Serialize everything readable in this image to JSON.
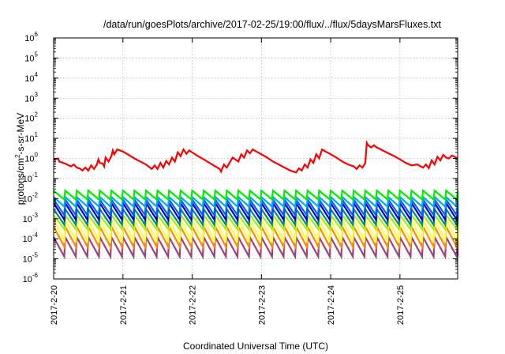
{
  "chart_data": {
    "type": "line",
    "title": "/data/run/goesPlots/archive/2017-02-25/19:00/flux/../flux/5daysMarsFluxes.txt",
    "xlabel": "Coordinated Universal Time (UTC)",
    "ylabel_parts": [
      "protons/cm",
      "2",
      "-s-sr-MeV"
    ],
    "y_scale": "log",
    "ylim": [
      1e-06,
      1000000.0
    ],
    "y_ticks": [
      {
        "base": "10",
        "exp": "-6",
        "value": 1e-06
      },
      {
        "base": "10",
        "exp": "-5",
        "value": 1e-05
      },
      {
        "base": "10",
        "exp": "-4",
        "value": 0.0001
      },
      {
        "base": "10",
        "exp": "-3",
        "value": 0.001
      },
      {
        "base": "10",
        "exp": "-2",
        "value": 0.01
      },
      {
        "base": "10",
        "exp": "-1",
        "value": 0.1
      },
      {
        "base": "10",
        "exp": "0",
        "value": 1
      },
      {
        "base": "10",
        "exp": "1",
        "value": 10
      },
      {
        "base": "10",
        "exp": "2",
        "value": 100
      },
      {
        "base": "10",
        "exp": "3",
        "value": 1000
      },
      {
        "base": "10",
        "exp": "4",
        "value": 10000
      },
      {
        "base": "10",
        "exp": "5",
        "value": 100000
      },
      {
        "base": "10",
        "exp": "6",
        "value": 1000000
      }
    ],
    "xlim": [
      "2017-02-20T00:00",
      "2017-02-25T20:00"
    ],
    "x_ticks": [
      {
        "label": "2017-2-20",
        "value": "2017-02-20T00:00"
      },
      {
        "label": "2017-2-21",
        "value": "2017-02-21T00:00"
      },
      {
        "label": "2017-2-22",
        "value": "2017-02-22T00:00"
      },
      {
        "label": "2017-2-23",
        "value": "2017-02-23T00:00"
      },
      {
        "label": "2017-2-24",
        "value": "2017-02-24T00:00"
      },
      {
        "label": "2017-2-25",
        "value": "2017-02-25T00:00"
      }
    ],
    "grid": true,
    "series": [
      {
        "color": "#ff0000",
        "x": [
          "2017-02-20T00:00",
          "2017-02-20T01:30",
          "2017-02-20T02:00",
          "2017-02-20T04:00",
          "2017-02-20T06:00",
          "2017-02-20T07:00",
          "2017-02-20T08:00",
          "2017-02-20T09:00",
          "2017-02-20T10:00",
          "2017-02-20T11:00",
          "2017-02-20T12:00",
          "2017-02-20T13:00",
          "2017-02-20T14:00",
          "2017-02-20T15:00",
          "2017-02-20T15:30",
          "2017-02-20T16:00",
          "2017-02-20T17:00",
          "2017-02-20T17:30",
          "2017-02-20T18:00",
          "2017-02-20T19:00",
          "2017-02-20T20:00",
          "2017-02-20T20:30",
          "2017-02-20T21:00",
          "2017-02-20T22:00",
          "2017-02-21T00:00",
          "2017-02-21T02:00",
          "2017-02-21T04:00",
          "2017-02-21T06:00",
          "2017-02-21T08:00",
          "2017-02-21T10:00",
          "2017-02-21T11:00",
          "2017-02-21T12:00",
          "2017-02-21T13:00",
          "2017-02-21T14:00",
          "2017-02-21T15:00",
          "2017-02-21T16:00",
          "2017-02-21T17:00",
          "2017-02-21T18:00",
          "2017-02-21T19:00",
          "2017-02-21T20:00",
          "2017-02-21T21:00",
          "2017-02-21T21:30",
          "2017-02-21T22:00",
          "2017-02-21T23:00",
          "2017-02-22T00:00",
          "2017-02-22T02:00",
          "2017-02-22T04:00",
          "2017-02-22T06:00",
          "2017-02-22T08:00",
          "2017-02-22T09:30",
          "2017-02-22T10:00",
          "2017-02-22T11:00",
          "2017-02-22T12:00",
          "2017-02-22T14:00",
          "2017-02-22T16:00",
          "2017-02-22T17:00",
          "2017-02-22T18:00",
          "2017-02-22T19:00",
          "2017-02-22T20:00",
          "2017-02-22T21:00",
          "2017-02-22T22:00",
          "2017-02-23T00:00",
          "2017-02-23T02:00",
          "2017-02-23T04:00",
          "2017-02-23T06:00",
          "2017-02-23T08:00",
          "2017-02-23T10:00",
          "2017-02-23T12:00",
          "2017-02-23T13:00",
          "2017-02-23T14:00",
          "2017-02-23T15:00",
          "2017-02-23T16:00",
          "2017-02-23T17:00",
          "2017-02-23T18:00",
          "2017-02-23T19:00",
          "2017-02-23T20:00",
          "2017-02-23T21:00",
          "2017-02-23T22:00",
          "2017-02-24T00:00",
          "2017-02-24T02:00",
          "2017-02-24T04:00",
          "2017-02-24T06:00",
          "2017-02-24T08:00",
          "2017-02-24T09:00",
          "2017-02-24T10:00",
          "2017-02-24T11:00",
          "2017-02-24T12:00",
          "2017-02-24T12:30",
          "2017-02-24T13:00",
          "2017-02-24T14:00",
          "2017-02-24T15:00",
          "2017-02-24T16:00",
          "2017-02-24T17:00",
          "2017-02-24T18:00",
          "2017-02-24T20:00",
          "2017-02-24T22:00",
          "2017-02-25T00:00",
          "2017-02-25T02:00",
          "2017-02-25T04:00",
          "2017-02-25T06:00",
          "2017-02-25T08:00",
          "2017-02-25T09:00",
          "2017-02-25T10:00",
          "2017-02-25T11:00",
          "2017-02-25T12:00",
          "2017-02-25T13:00",
          "2017-02-25T14:00",
          "2017-02-25T15:00",
          "2017-02-25T16:00",
          "2017-02-25T17:00",
          "2017-02-25T18:00",
          "2017-02-25T19:00",
          "2017-02-25T20:00"
        ],
        "y": [
          0.9,
          1.0,
          0.7,
          0.55,
          0.4,
          0.5,
          0.35,
          0.32,
          0.25,
          0.35,
          0.25,
          0.45,
          0.3,
          0.5,
          0.9,
          0.6,
          0.55,
          0.4,
          1.1,
          0.7,
          1.3,
          2.5,
          1.6,
          2.8,
          2.2,
          1.5,
          1.0,
          0.7,
          0.5,
          0.3,
          0.45,
          0.3,
          0.6,
          0.35,
          0.75,
          0.5,
          1.1,
          0.7,
          2.0,
          1.3,
          2.8,
          2.2,
          1.7,
          2.5,
          2.0,
          1.3,
          0.9,
          0.6,
          0.4,
          0.3,
          0.22,
          0.5,
          0.35,
          1.1,
          0.7,
          1.6,
          1.1,
          2.5,
          1.8,
          2.8,
          2.3,
          1.6,
          1.1,
          0.7,
          0.5,
          0.35,
          0.25,
          0.2,
          0.32,
          0.25,
          0.5,
          0.35,
          0.9,
          0.6,
          1.6,
          1.0,
          2.8,
          2.3,
          1.6,
          1.1,
          0.7,
          0.5,
          0.4,
          0.3,
          0.45,
          0.35,
          0.6,
          6.0,
          4.5,
          3.5,
          4.5,
          3.5,
          3.0,
          2.5,
          1.8,
          1.3,
          0.9,
          0.6,
          0.45,
          0.5,
          0.35,
          0.5,
          0.33,
          0.8,
          0.5,
          1.2,
          0.8,
          1.5,
          1.1,
          1.0,
          1.4,
          1.2,
          1.0
        ]
      }
    ],
    "sawtooth_bands": [
      {
        "color": "#00ee00",
        "peak": 0.025,
        "trough": 0.009
      },
      {
        "color": "#00a9ee",
        "peak": 0.012,
        "trough": 0.004
      },
      {
        "color": "#0060ff",
        "peak": 0.009,
        "trough": 0.0015
      },
      {
        "color": "#0000cc",
        "peak": 0.006,
        "trough": 0.0009
      },
      {
        "color": "#008a8a",
        "peak": 0.003,
        "trough": 0.0005
      },
      {
        "color": "#a8ee00",
        "peak": 0.0015,
        "trough": 0.0003
      },
      {
        "color": "#ffff40",
        "peak": 0.0009,
        "trough": 8e-05
      },
      {
        "color": "#ff8c00",
        "peak": 0.0004,
        "trough": 4e-05
      },
      {
        "color": "#a0407a",
        "peak": 0.00012,
        "trough": 1.3e-05
      }
    ],
    "sawtooth_period_hours": 4
  }
}
